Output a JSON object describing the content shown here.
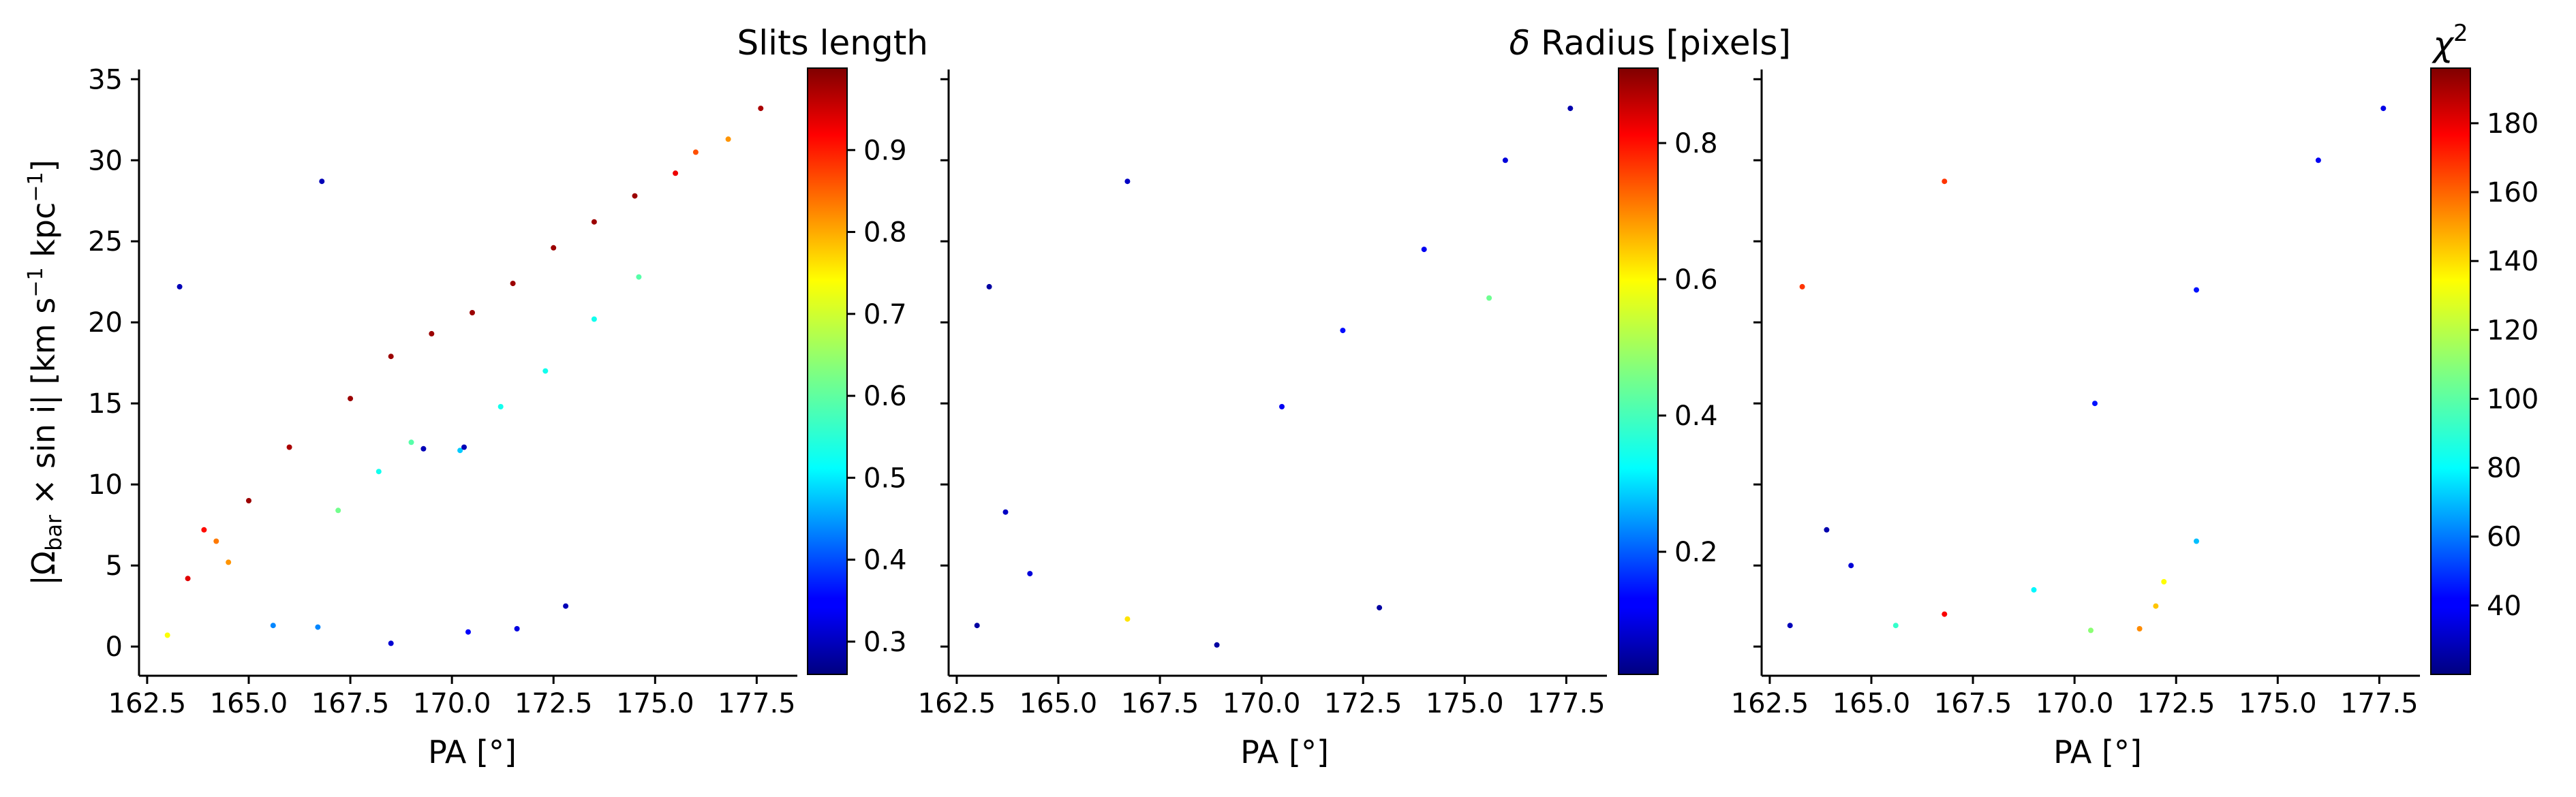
{
  "figure": {
    "panels": [
      {
        "id": "slits",
        "colorbar": {
          "title": "Slits length",
          "ticks": [
            "0.3",
            "0.4",
            "0.5",
            "0.6",
            "0.7",
            "0.8",
            "0.9"
          ],
          "range": [
            0.26,
            1.0
          ]
        }
      },
      {
        "id": "dradius",
        "colorbar": {
          "title_prefix": "δ",
          "title_rest": " Radius [pixels]",
          "ticks": [
            "0.2",
            "0.4",
            "0.6",
            "0.8"
          ],
          "range": [
            0.02,
            0.91
          ]
        }
      },
      {
        "id": "chi2",
        "colorbar": {
          "title_base": "χ",
          "title_sup": "2",
          "ticks": [
            "40",
            "60",
            "80",
            "100",
            "120",
            "140",
            "160",
            "180"
          ],
          "range": [
            20,
            196
          ]
        }
      }
    ],
    "xaxis": {
      "label": "PA [°]",
      "ticks": [
        "162.5",
        "165.0",
        "167.5",
        "170.0",
        "172.5",
        "175.0",
        "177.5"
      ],
      "range": [
        162.3,
        178.5
      ]
    },
    "yaxis": {
      "label_prefix": "|Ω",
      "label_sub": "bar",
      "label_mid": " × sin i|  [km s",
      "label_sup1": "−1",
      "label_mid2": " kpc",
      "label_sup2": "−1",
      "label_end": "]",
      "ticks": [
        "0",
        "5",
        "10",
        "15",
        "20",
        "25",
        "30",
        "35"
      ],
      "range": [
        -1.8,
        35.6
      ]
    },
    "colormap": "jet"
  },
  "chart_data": [
    {
      "type": "scatter",
      "xlabel": "PA [°]",
      "ylabel": "|Ω_bar × sin i|  [km s−1 kpc−1]",
      "color_label": "Slits length",
      "xlim": [
        162.3,
        178.5
      ],
      "ylim": [
        -1.8,
        35.6
      ],
      "color_range": [
        0.26,
        1.0
      ],
      "trend": "Dense wedge of points rising from (164.5, 5) to (177, 31); colour increases with |Ω_bar| at fixed PA (upper edge red ≈1.0, lower scatter blue ≈0.3).",
      "points": [
        {
          "x": 163.0,
          "y": 0.7,
          "c": 0.72
        },
        {
          "x": 163.3,
          "y": 22.2,
          "c": 0.3
        },
        {
          "x": 163.5,
          "y": 4.2,
          "c": 0.93
        },
        {
          "x": 163.9,
          "y": 7.2,
          "c": 0.9
        },
        {
          "x": 164.2,
          "y": 6.5,
          "c": 0.82
        },
        {
          "x": 164.5,
          "y": 5.2,
          "c": 0.8
        },
        {
          "x": 165.0,
          "y": 9.0,
          "c": 0.98
        },
        {
          "x": 166.0,
          "y": 12.3,
          "c": 0.97
        },
        {
          "x": 166.8,
          "y": 28.7,
          "c": 0.3
        },
        {
          "x": 167.5,
          "y": 15.3,
          "c": 0.98
        },
        {
          "x": 168.5,
          "y": 17.9,
          "c": 0.98
        },
        {
          "x": 169.5,
          "y": 19.3,
          "c": 0.98
        },
        {
          "x": 170.5,
          "y": 20.6,
          "c": 0.98
        },
        {
          "x": 171.5,
          "y": 22.4,
          "c": 0.98
        },
        {
          "x": 172.5,
          "y": 24.6,
          "c": 0.98
        },
        {
          "x": 173.5,
          "y": 26.2,
          "c": 0.98
        },
        {
          "x": 174.5,
          "y": 27.8,
          "c": 0.98
        },
        {
          "x": 175.5,
          "y": 29.2,
          "c": 0.92
        },
        {
          "x": 176.0,
          "y": 30.5,
          "c": 0.85
        },
        {
          "x": 176.8,
          "y": 31.3,
          "c": 0.8
        },
        {
          "x": 177.6,
          "y": 33.2,
          "c": 0.97
        },
        {
          "x": 167.2,
          "y": 8.4,
          "c": 0.62
        },
        {
          "x": 168.2,
          "y": 10.8,
          "c": 0.55
        },
        {
          "x": 169.0,
          "y": 12.6,
          "c": 0.6
        },
        {
          "x": 170.2,
          "y": 12.1,
          "c": 0.5
        },
        {
          "x": 171.2,
          "y": 14.8,
          "c": 0.55
        },
        {
          "x": 172.3,
          "y": 17.0,
          "c": 0.55
        },
        {
          "x": 173.5,
          "y": 20.2,
          "c": 0.55
        },
        {
          "x": 174.6,
          "y": 22.8,
          "c": 0.6
        },
        {
          "x": 165.6,
          "y": 1.3,
          "c": 0.45
        },
        {
          "x": 166.7,
          "y": 1.2,
          "c": 0.45
        },
        {
          "x": 168.5,
          "y": 0.2,
          "c": 0.32
        },
        {
          "x": 170.4,
          "y": 0.9,
          "c": 0.35
        },
        {
          "x": 171.6,
          "y": 1.1,
          "c": 0.33
        },
        {
          "x": 172.8,
          "y": 2.5,
          "c": 0.3
        },
        {
          "x": 169.3,
          "y": 12.2,
          "c": 0.3
        },
        {
          "x": 170.3,
          "y": 12.3,
          "c": 0.3
        }
      ]
    },
    {
      "type": "scatter",
      "xlabel": "PA [°]",
      "ylabel": "|Ω_bar × sin i|  [km s−1 kpc−1]",
      "color_label": "δ Radius [pixels]",
      "xlim": [
        162.3,
        178.5
      ],
      "ylim": [
        -1.8,
        35.6
      ],
      "color_range": [
        0.02,
        0.91
      ],
      "trend": "Same point cloud; almost all points dark-to-medium blue (δ Radius ≈ 0.05–0.2) with scattered cyan/green points.",
      "points": [
        {
          "x": 163.0,
          "y": 1.3,
          "c": 0.05
        },
        {
          "x": 163.3,
          "y": 22.2,
          "c": 0.05
        },
        {
          "x": 163.7,
          "y": 8.3,
          "c": 0.08
        },
        {
          "x": 164.3,
          "y": 4.5,
          "c": 0.1
        },
        {
          "x": 166.7,
          "y": 28.7,
          "c": 0.08
        },
        {
          "x": 168.9,
          "y": 0.1,
          "c": 0.05
        },
        {
          "x": 172.9,
          "y": 2.4,
          "c": 0.05
        },
        {
          "x": 166.7,
          "y": 1.7,
          "c": 0.6
        },
        {
          "x": 170.5,
          "y": 14.8,
          "c": 0.12
        },
        {
          "x": 172.0,
          "y": 19.5,
          "c": 0.14
        },
        {
          "x": 174.0,
          "y": 24.5,
          "c": 0.12
        },
        {
          "x": 176.0,
          "y": 30.0,
          "c": 0.1
        },
        {
          "x": 177.6,
          "y": 33.2,
          "c": 0.06
        },
        {
          "x": 175.6,
          "y": 21.5,
          "c": 0.45
        }
      ]
    },
    {
      "type": "scatter",
      "xlabel": "PA [°]",
      "ylabel": "|Ω_bar × sin i|  [km s−1 kpc−1]",
      "color_label": "χ2",
      "xlim": [
        162.3,
        178.5
      ],
      "ylim": [
        -1.8,
        35.6
      ],
      "color_range": [
        20,
        196
      ],
      "trend": "Same point cloud; dense region χ² ≈ 30–55 (blue), lower scattered points cyan/green/yellow (χ² 80–140), a few orange outliers.",
      "points": [
        {
          "x": 163.0,
          "y": 1.3,
          "c": 30
        },
        {
          "x": 163.3,
          "y": 22.2,
          "c": 165
        },
        {
          "x": 163.9,
          "y": 7.2,
          "c": 28
        },
        {
          "x": 164.5,
          "y": 5.0,
          "c": 35
        },
        {
          "x": 166.8,
          "y": 28.7,
          "c": 165
        },
        {
          "x": 166.8,
          "y": 2.0,
          "c": 175
        },
        {
          "x": 171.6,
          "y": 1.1,
          "c": 150
        },
        {
          "x": 172.0,
          "y": 2.5,
          "c": 140
        },
        {
          "x": 172.2,
          "y": 4.0,
          "c": 130
        },
        {
          "x": 170.4,
          "y": 1.0,
          "c": 110
        },
        {
          "x": 165.6,
          "y": 1.3,
          "c": 95
        },
        {
          "x": 169.0,
          "y": 3.5,
          "c": 85
        },
        {
          "x": 173.0,
          "y": 6.5,
          "c": 75
        },
        {
          "x": 170.5,
          "y": 15.0,
          "c": 45
        },
        {
          "x": 173.0,
          "y": 22.0,
          "c": 45
        },
        {
          "x": 176.0,
          "y": 30.0,
          "c": 40
        },
        {
          "x": 177.6,
          "y": 33.2,
          "c": 38
        }
      ]
    }
  ]
}
